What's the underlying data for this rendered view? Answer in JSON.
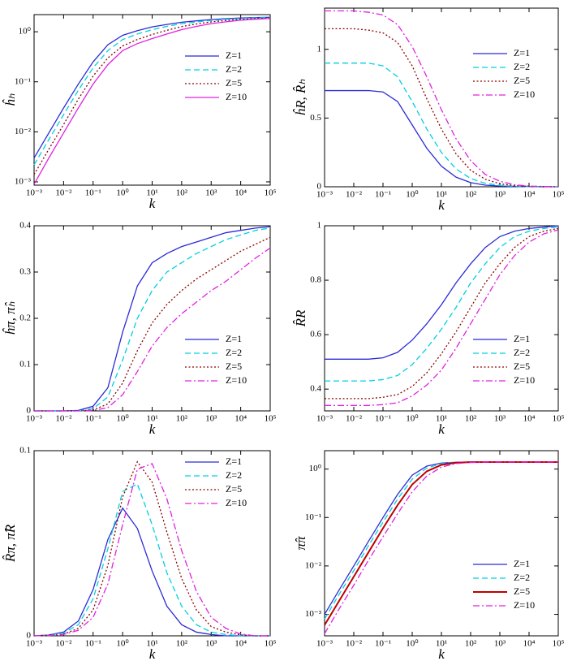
{
  "chart_data": [
    {
      "type": "line",
      "y_label": "ĥₕ",
      "x_label": "k",
      "xlog": true,
      "ylog": true,
      "legend": "center right",
      "xlim": [
        0.001,
        100000
      ],
      "ylim": [
        0.00086,
        2.2
      ],
      "xticks": [
        {
          "value": 0.001,
          "label": "10⁻³"
        },
        {
          "value": 0.01,
          "label": "10⁻²"
        },
        {
          "value": 0.1,
          "label": "10⁻¹"
        },
        {
          "value": 1,
          "label": "10⁰"
        },
        {
          "value": 10,
          "label": "10¹"
        },
        {
          "value": 100,
          "label": "10²"
        },
        {
          "value": 1000,
          "label": "10³"
        },
        {
          "value": 10000,
          "label": "10⁴"
        },
        {
          "value": 100000,
          "label": "10⁵"
        }
      ],
      "yticks": [
        {
          "value": 0.001,
          "label": "10⁻³"
        },
        {
          "value": 0.01,
          "label": "10⁻²"
        },
        {
          "value": 0.1,
          "label": "10⁻¹"
        },
        {
          "value": 1,
          "label": "10⁰"
        }
      ],
      "x": [
        0.001,
        0.00316,
        0.01,
        0.0316,
        0.1,
        0.316,
        1,
        3.16,
        10,
        31.6,
        100,
        316,
        1000,
        3162,
        10000,
        31623,
        100000
      ],
      "series": [
        {
          "name": "Z=1",
          "color": "#2b2bd6",
          "dash": "solid",
          "values": [
            0.003,
            0.0095,
            0.03,
            0.09,
            0.25,
            0.55,
            0.85,
            1.05,
            1.25,
            1.4,
            1.55,
            1.65,
            1.75,
            1.82,
            1.88,
            1.92,
            1.95
          ]
        },
        {
          "name": "Z=2",
          "color": "#00d0e0",
          "dash": "dashed",
          "values": [
            0.0022,
            0.007,
            0.022,
            0.068,
            0.19,
            0.42,
            0.7,
            0.9,
            1.1,
            1.28,
            1.45,
            1.57,
            1.68,
            1.77,
            1.84,
            1.89,
            1.92
          ]
        },
        {
          "name": "Z=5",
          "color": "#8b0000",
          "dash": "dotted",
          "values": [
            0.0014,
            0.0045,
            0.014,
            0.045,
            0.13,
            0.3,
            0.52,
            0.7,
            0.88,
            1.07,
            1.27,
            1.43,
            1.57,
            1.68,
            1.77,
            1.83,
            1.88
          ]
        },
        {
          "name": "Z=10",
          "color": "#e020e0",
          "dash": "solid",
          "values": [
            0.0009,
            0.003,
            0.0095,
            0.03,
            0.09,
            0.22,
            0.42,
            0.58,
            0.73,
            0.9,
            1.1,
            1.28,
            1.45,
            1.58,
            1.7,
            1.78,
            1.84
          ]
        }
      ]
    },
    {
      "type": "line",
      "y_label": "ĥR, R̂ₕ",
      "x_label": "k",
      "xlog": true,
      "ylog": false,
      "legend": "center right",
      "xlim": [
        0.001,
        100000
      ],
      "ylim": [
        0,
        1.3
      ],
      "xticks": [
        {
          "value": 0.001,
          "label": "10⁻³"
        },
        {
          "value": 0.01,
          "label": "10⁻²"
        },
        {
          "value": 0.1,
          "label": "10⁻¹"
        },
        {
          "value": 1,
          "label": "10⁰"
        },
        {
          "value": 10,
          "label": "10¹"
        },
        {
          "value": 100,
          "label": "10²"
        },
        {
          "value": 1000,
          "label": "10³"
        },
        {
          "value": 10000,
          "label": "10⁴"
        },
        {
          "value": 100000,
          "label": "10⁵"
        }
      ],
      "yticks": [
        0,
        0.5,
        1
      ],
      "x": [
        0.001,
        0.00316,
        0.01,
        0.0316,
        0.1,
        0.316,
        1,
        3.16,
        10,
        31.6,
        100,
        316,
        1000,
        3162,
        10000,
        31623,
        100000
      ],
      "series": [
        {
          "name": "Z=1",
          "color": "#2b2bd6",
          "dash": "solid",
          "values": [
            0.7,
            0.7,
            0.7,
            0.7,
            0.69,
            0.62,
            0.45,
            0.28,
            0.15,
            0.07,
            0.03,
            0.012,
            0.005,
            0.002,
            0.001,
            0,
            0
          ]
        },
        {
          "name": "Z=2",
          "color": "#00d0e0",
          "dash": "dashed",
          "values": [
            0.9,
            0.9,
            0.9,
            0.9,
            0.88,
            0.8,
            0.62,
            0.42,
            0.25,
            0.13,
            0.06,
            0.025,
            0.01,
            0.004,
            0.001,
            0,
            0
          ]
        },
        {
          "name": "Z=5",
          "color": "#8b0000",
          "dash": "dotted",
          "values": [
            1.15,
            1.15,
            1.15,
            1.14,
            1.12,
            1.05,
            0.88,
            0.64,
            0.42,
            0.24,
            0.12,
            0.055,
            0.022,
            0.008,
            0.003,
            0.001,
            0
          ]
        },
        {
          "name": "Z=10",
          "color": "#e020e0",
          "dash": "dashdot",
          "values": [
            1.28,
            1.28,
            1.28,
            1.27,
            1.25,
            1.18,
            1.02,
            0.8,
            0.56,
            0.35,
            0.19,
            0.09,
            0.04,
            0.015,
            0.005,
            0.002,
            0
          ]
        }
      ]
    },
    {
      "type": "line",
      "y_label": "ĥπ, π̂ₕ",
      "x_label": "k",
      "xlog": true,
      "ylog": false,
      "legend": "lower right",
      "xlim": [
        0.001,
        100000
      ],
      "ylim": [
        0,
        0.4
      ],
      "xticks": [
        {
          "value": 0.001,
          "label": "10⁻³"
        },
        {
          "value": 0.01,
          "label": "10⁻²"
        },
        {
          "value": 0.1,
          "label": "10⁻¹"
        },
        {
          "value": 1,
          "label": "10⁰"
        },
        {
          "value": 10,
          "label": "10¹"
        },
        {
          "value": 100,
          "label": "10²"
        },
        {
          "value": 1000,
          "label": "10³"
        },
        {
          "value": 10000,
          "label": "10⁴"
        },
        {
          "value": 100000,
          "label": "10⁵"
        }
      ],
      "yticks": [
        0,
        0.1,
        0.2,
        0.3,
        0.4
      ],
      "x": [
        0.001,
        0.00316,
        0.01,
        0.0316,
        0.1,
        0.316,
        1,
        3.16,
        10,
        31.6,
        100,
        316,
        1000,
        3162,
        10000,
        31623,
        100000
      ],
      "series": [
        {
          "name": "Z=1",
          "color": "#2b2bd6",
          "dash": "solid",
          "values": [
            0,
            0,
            0,
            0.001,
            0.01,
            0.05,
            0.17,
            0.27,
            0.32,
            0.34,
            0.355,
            0.365,
            0.375,
            0.385,
            0.39,
            0.395,
            0.398
          ]
        },
        {
          "name": "Z=2",
          "color": "#00d0e0",
          "dash": "dashed",
          "values": [
            0,
            0,
            0,
            0,
            0.005,
            0.03,
            0.11,
            0.2,
            0.26,
            0.3,
            0.32,
            0.34,
            0.355,
            0.37,
            0.38,
            0.39,
            0.395
          ]
        },
        {
          "name": "Z=5",
          "color": "#8b0000",
          "dash": "dotted",
          "values": [
            0,
            0,
            0,
            0,
            0.002,
            0.015,
            0.06,
            0.13,
            0.19,
            0.23,
            0.26,
            0.285,
            0.305,
            0.325,
            0.345,
            0.36,
            0.375
          ]
        },
        {
          "name": "Z=10",
          "color": "#e020e0",
          "dash": "dashdot",
          "values": [
            0,
            0,
            0,
            0,
            0.001,
            0.007,
            0.035,
            0.085,
            0.14,
            0.18,
            0.21,
            0.235,
            0.26,
            0.28,
            0.305,
            0.33,
            0.352
          ]
        }
      ]
    },
    {
      "type": "line",
      "y_label": "R̂R",
      "x_label": "k",
      "xlog": true,
      "ylog": false,
      "legend": "lower right",
      "xlim": [
        0.001,
        100000
      ],
      "ylim": [
        0.32,
        1
      ],
      "xticks": [
        {
          "value": 0.001,
          "label": "10⁻³"
        },
        {
          "value": 0.01,
          "label": "10⁻²"
        },
        {
          "value": 0.1,
          "label": "10⁻¹"
        },
        {
          "value": 1,
          "label": "10⁰"
        },
        {
          "value": 10,
          "label": "10¹"
        },
        {
          "value": 100,
          "label": "10²"
        },
        {
          "value": 1000,
          "label": "10³"
        },
        {
          "value": 10000,
          "label": "10⁴"
        },
        {
          "value": 100000,
          "label": "10⁵"
        }
      ],
      "yticks": [
        0.4,
        0.6,
        0.8,
        1
      ],
      "x": [
        0.001,
        0.00316,
        0.01,
        0.0316,
        0.1,
        0.316,
        1,
        3.16,
        10,
        31.6,
        100,
        316,
        1000,
        3162,
        10000,
        31623,
        100000
      ],
      "series": [
        {
          "name": "Z=1",
          "color": "#2b2bd6",
          "dash": "solid",
          "values": [
            0.51,
            0.51,
            0.51,
            0.51,
            0.515,
            0.535,
            0.58,
            0.64,
            0.71,
            0.79,
            0.86,
            0.92,
            0.96,
            0.98,
            0.99,
            0.995,
            1
          ]
        },
        {
          "name": "Z=2",
          "color": "#00d0e0",
          "dash": "dashed",
          "values": [
            0.43,
            0.43,
            0.43,
            0.43,
            0.435,
            0.45,
            0.49,
            0.55,
            0.62,
            0.7,
            0.79,
            0.86,
            0.92,
            0.96,
            0.98,
            0.99,
            0.995
          ]
        },
        {
          "name": "Z=5",
          "color": "#8b0000",
          "dash": "dotted",
          "values": [
            0.365,
            0.365,
            0.365,
            0.365,
            0.37,
            0.38,
            0.41,
            0.46,
            0.53,
            0.61,
            0.7,
            0.79,
            0.86,
            0.92,
            0.96,
            0.98,
            0.99
          ]
        },
        {
          "name": "Z=10",
          "color": "#e020e0",
          "dash": "dashdot",
          "values": [
            0.34,
            0.34,
            0.34,
            0.34,
            0.343,
            0.35,
            0.375,
            0.415,
            0.47,
            0.55,
            0.64,
            0.73,
            0.82,
            0.89,
            0.94,
            0.97,
            0.985
          ]
        }
      ]
    },
    {
      "type": "line",
      "y_label": "R̂π, π̂R",
      "x_label": "k",
      "xlog": true,
      "ylog": false,
      "legend": "upper right",
      "xlim": [
        0.001,
        100000
      ],
      "ylim": [
        0,
        0.1
      ],
      "xticks": [
        {
          "value": 0.001,
          "label": "10⁻³"
        },
        {
          "value": 0.01,
          "label": "10⁻²"
        },
        {
          "value": 0.1,
          "label": "10⁻¹"
        },
        {
          "value": 1,
          "label": "10⁰"
        },
        {
          "value": 10,
          "label": "10¹"
        },
        {
          "value": 100,
          "label": "10²"
        },
        {
          "value": 1000,
          "label": "10³"
        },
        {
          "value": 10000,
          "label": "10⁴"
        },
        {
          "value": 100000,
          "label": "10⁵"
        }
      ],
      "yticks": [
        0,
        0.1
      ],
      "x": [
        0.001,
        0.00316,
        0.01,
        0.0316,
        0.1,
        0.316,
        1,
        3.16,
        10,
        31.6,
        100,
        316,
        1000,
        3162,
        10000,
        31623,
        100000
      ],
      "series": [
        {
          "name": "Z=1",
          "color": "#2b2bd6",
          "dash": "solid",
          "values": [
            0,
            0.0005,
            0.002,
            0.008,
            0.025,
            0.052,
            0.069,
            0.058,
            0.035,
            0.016,
            0.006,
            0.002,
            0.0007,
            0,
            0,
            0,
            0
          ]
        },
        {
          "name": "Z=2",
          "color": "#00d0e0",
          "dash": "dashed",
          "values": [
            0,
            0.0004,
            0.0015,
            0.006,
            0.02,
            0.047,
            0.078,
            0.082,
            0.06,
            0.034,
            0.016,
            0.006,
            0.002,
            0.0007,
            0,
            0,
            0
          ]
        },
        {
          "name": "Z=5",
          "color": "#8b0000",
          "dash": "dotted",
          "values": [
            0,
            0.0003,
            0.001,
            0.004,
            0.014,
            0.038,
            0.075,
            0.094,
            0.083,
            0.056,
            0.031,
            0.014,
            0.005,
            0.002,
            0.0005,
            0,
            0
          ]
        },
        {
          "name": "Z=10",
          "color": "#e020e0",
          "dash": "dashdot",
          "values": [
            0,
            0.0002,
            0.0007,
            0.003,
            0.01,
            0.028,
            0.06,
            0.09,
            0.093,
            0.074,
            0.046,
            0.024,
            0.01,
            0.004,
            0.001,
            0,
            0
          ]
        }
      ]
    },
    {
      "type": "line",
      "y_label": "π̂π",
      "x_label": "k",
      "xlog": true,
      "ylog": true,
      "legend": "lower right",
      "xlim": [
        0.001,
        100000
      ],
      "ylim": [
        0.00036,
        2.4
      ],
      "xticks": [
        {
          "value": 0.001,
          "label": "10⁻³"
        },
        {
          "value": 0.01,
          "label": "10⁻²"
        },
        {
          "value": 0.1,
          "label": "10⁻¹"
        },
        {
          "value": 1,
          "label": "10⁰"
        },
        {
          "value": 10,
          "label": "10¹"
        },
        {
          "value": 100,
          "label": "10²"
        },
        {
          "value": 1000,
          "label": "10³"
        },
        {
          "value": 10000,
          "label": "10⁴"
        },
        {
          "value": 100000,
          "label": "10⁵"
        }
      ],
      "yticks": [
        {
          "value": 0.001,
          "label": "10⁻³"
        },
        {
          "value": 0.01,
          "label": "10⁻²"
        },
        {
          "value": 0.1,
          "label": "10⁻¹"
        },
        {
          "value": 1,
          "label": "10⁰"
        }
      ],
      "x": [
        0.001,
        0.00316,
        0.01,
        0.0316,
        0.1,
        0.316,
        1,
        3.16,
        10,
        31.6,
        100,
        316,
        1000,
        3162,
        10000,
        31623,
        100000
      ],
      "series": [
        {
          "name": "Z=1",
          "color": "#2b2bd6",
          "dash": "solid",
          "values": [
            0.001,
            0.0032,
            0.01,
            0.032,
            0.1,
            0.3,
            0.75,
            1.15,
            1.33,
            1.38,
            1.4,
            1.4,
            1.4,
            1.4,
            1.4,
            1.4,
            1.4
          ]
        },
        {
          "name": "Z=2",
          "color": "#00d0e0",
          "dash": "dashed",
          "values": [
            0.0008,
            0.0026,
            0.008,
            0.026,
            0.08,
            0.24,
            0.62,
            1.05,
            1.3,
            1.37,
            1.4,
            1.4,
            1.4,
            1.4,
            1.4,
            1.4,
            1.4
          ]
        },
        {
          "name": "Z=5",
          "color": "#c00000",
          "dash": "solid",
          "line_width": 2,
          "values": [
            0.0006,
            0.0019,
            0.006,
            0.019,
            0.06,
            0.18,
            0.48,
            0.9,
            1.22,
            1.35,
            1.39,
            1.4,
            1.4,
            1.4,
            1.4,
            1.4,
            1.4
          ]
        },
        {
          "name": "Z=10",
          "color": "#e020e0",
          "dash": "dashdot",
          "values": [
            0.0004,
            0.0013,
            0.004,
            0.013,
            0.04,
            0.12,
            0.34,
            0.72,
            1.1,
            1.3,
            1.37,
            1.4,
            1.4,
            1.4,
            1.4,
            1.4,
            1.4
          ]
        }
      ]
    }
  ]
}
